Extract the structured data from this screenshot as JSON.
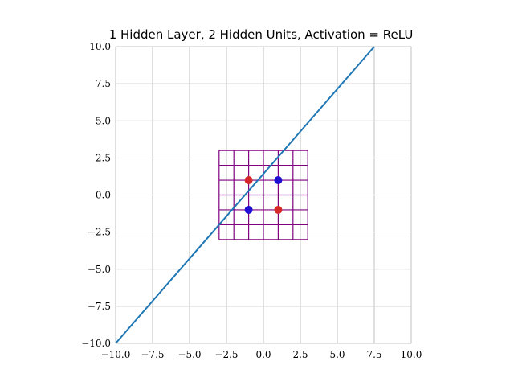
{
  "chart_data": {
    "type": "line",
    "title": "1 Hidden Layer, 2 Hidden Units, Activation = ReLU",
    "xlabel": "",
    "ylabel": "",
    "xlim": [
      -10,
      10
    ],
    "ylim": [
      -10,
      10
    ],
    "x_ticks": [
      -10,
      -7.5,
      -5,
      -2.5,
      0,
      2.5,
      5,
      7.5,
      10
    ],
    "y_ticks": [
      -10,
      -7.5,
      -5,
      -2.5,
      0,
      2.5,
      5,
      7.5,
      10
    ],
    "x_tick_labels": [
      "−10.0",
      "−7.5",
      "−5.0",
      "−2.5",
      "0.0",
      "2.5",
      "5.0",
      "7.5",
      "10.0"
    ],
    "y_tick_labels": [
      "−10.0",
      "−7.5",
      "−5.0",
      "−2.5",
      "0.0",
      "2.5",
      "5.0",
      "7.5",
      "10.0"
    ],
    "grid": true,
    "decision_line": {
      "x": [
        -10,
        7.5
      ],
      "y": [
        -10,
        10
      ],
      "color": "#1f77b4"
    },
    "mesh": {
      "range": [
        -3,
        3
      ],
      "lines": [
        -3,
        -2,
        -1,
        0,
        1,
        2,
        3
      ],
      "color": "#800080"
    },
    "points": [
      {
        "x": -1,
        "y": 1,
        "color": "#d62728"
      },
      {
        "x": 1,
        "y": -1,
        "color": "#d62728"
      },
      {
        "x": 1,
        "y": 1,
        "color": "#1f0fd0"
      },
      {
        "x": -1,
        "y": -1,
        "color": "#1f0fd0"
      }
    ]
  }
}
